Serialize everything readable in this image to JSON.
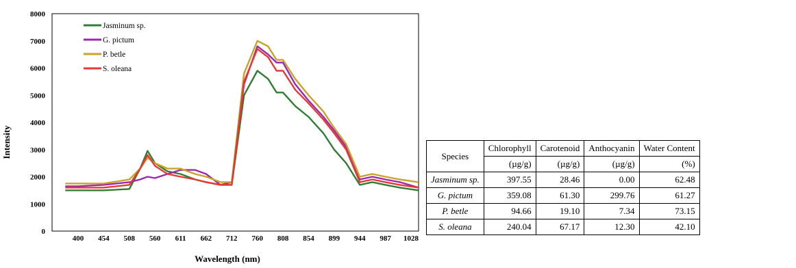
{
  "chart_data": {
    "type": "line",
    "ylabel": "Intensity",
    "xlabel": "Wavelength (nm)",
    "ylim": [
      0,
      8000
    ],
    "yticks": [
      "0",
      "1000",
      "2000",
      "3000",
      "4000",
      "5000",
      "6000",
      "7000",
      "8000"
    ],
    "xticks": [
      "400",
      "454",
      "508",
      "560",
      "611",
      "662",
      "712",
      "760",
      "808",
      "854",
      "899",
      "944",
      "987",
      "1028"
    ],
    "legend_position": "top-left",
    "series": [
      {
        "name": "Jasminum sp.",
        "color": "#2e7d32",
        "x": [
          373,
          400,
          454,
          508,
          530,
          545,
          560,
          585,
          611,
          640,
          662,
          690,
          712,
          735,
          760,
          780,
          796,
          808,
          830,
          854,
          880,
          899,
          920,
          944,
          965,
          987,
          1010,
          1040
        ],
        "y": [
          1500,
          1500,
          1500,
          1550,
          2300,
          2950,
          2500,
          2200,
          2100,
          1900,
          1800,
          1700,
          1700,
          5000,
          5900,
          5600,
          5100,
          5100,
          4600,
          4200,
          3600,
          3000,
          2500,
          1700,
          1800,
          1700,
          1600,
          1500
        ]
      },
      {
        "name": "G. pictum",
        "color": "#9c27b0",
        "x": [
          373,
          400,
          454,
          508,
          530,
          545,
          560,
          585,
          611,
          640,
          662,
          690,
          712,
          735,
          760,
          780,
          796,
          808,
          830,
          854,
          880,
          899,
          920,
          944,
          965,
          987,
          1010,
          1040
        ],
        "y": [
          1650,
          1650,
          1700,
          1800,
          1900,
          2000,
          1950,
          2100,
          2250,
          2250,
          2100,
          1700,
          1800,
          5400,
          6800,
          6500,
          6200,
          6200,
          5400,
          4800,
          4200,
          3700,
          3100,
          1900,
          2000,
          1900,
          1800,
          1600
        ]
      },
      {
        "name": "P. betle",
        "color": "#c9a227",
        "x": [
          373,
          400,
          454,
          508,
          530,
          545,
          560,
          585,
          611,
          640,
          662,
          690,
          712,
          735,
          760,
          780,
          796,
          808,
          830,
          854,
          880,
          899,
          920,
          944,
          965,
          987,
          1010,
          1040
        ],
        "y": [
          1750,
          1750,
          1750,
          1900,
          2300,
          2700,
          2500,
          2300,
          2300,
          2100,
          2000,
          1800,
          1800,
          5800,
          7000,
          6800,
          6300,
          6300,
          5600,
          5000,
          4400,
          3800,
          3200,
          2000,
          2100,
          2000,
          1900,
          1800
        ]
      },
      {
        "name": "S. oleana",
        "color": "#e53935",
        "x": [
          373,
          400,
          454,
          508,
          530,
          545,
          560,
          585,
          611,
          640,
          662,
          690,
          712,
          735,
          760,
          780,
          796,
          808,
          830,
          854,
          880,
          899,
          920,
          944,
          965,
          987,
          1010,
          1040
        ],
        "y": [
          1600,
          1600,
          1600,
          1700,
          2300,
          2800,
          2400,
          2100,
          2000,
          1900,
          1800,
          1700,
          1700,
          5500,
          6700,
          6400,
          5900,
          5900,
          5200,
          4700,
          4100,
          3600,
          3000,
          1800,
          1900,
          1800,
          1700,
          1600
        ]
      }
    ]
  },
  "table": {
    "headers": [
      "Species",
      "Chlorophyll",
      "Carotenoid",
      "Anthocyanin",
      "Water Content"
    ],
    "units": [
      "(µg/g)",
      "(µg/g)",
      "(µg/g)",
      "(%)"
    ],
    "rows": [
      {
        "species": "Jasminum sp.",
        "values": [
          "397.55",
          "28.46",
          "0.00",
          "62.48"
        ]
      },
      {
        "species": "G. pictum",
        "values": [
          "359.08",
          "61.30",
          "299.76",
          "61.27"
        ]
      },
      {
        "species": "P. betle",
        "values": [
          "94.66",
          "19.10",
          "7.34",
          "73.15"
        ]
      },
      {
        "species": "S. oleana",
        "values": [
          "240.04",
          "67.17",
          "12.30",
          "42.10"
        ]
      }
    ]
  }
}
